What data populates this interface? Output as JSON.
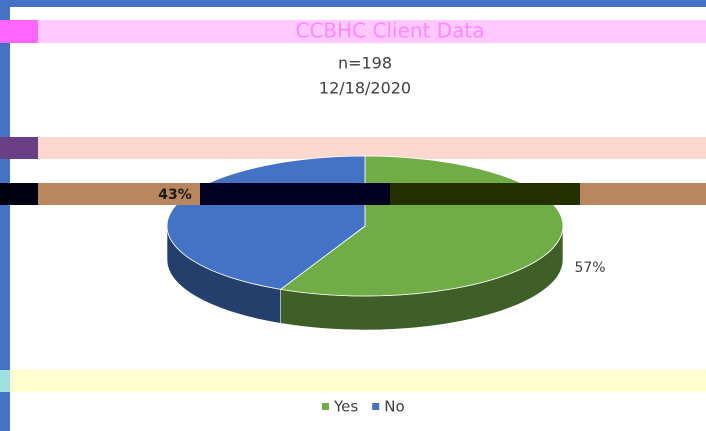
{
  "chart_data": {
    "type": "pie",
    "title": "CCBHC Client Data",
    "subtitle": [
      "n=198",
      "12/18/2020"
    ],
    "categories": [
      "Yes",
      "No"
    ],
    "values": [
      57,
      43
    ],
    "value_labels": [
      "57%",
      "43%"
    ],
    "colors": [
      "#70ad47",
      "#4472c4"
    ],
    "legend": "bottom"
  }
}
